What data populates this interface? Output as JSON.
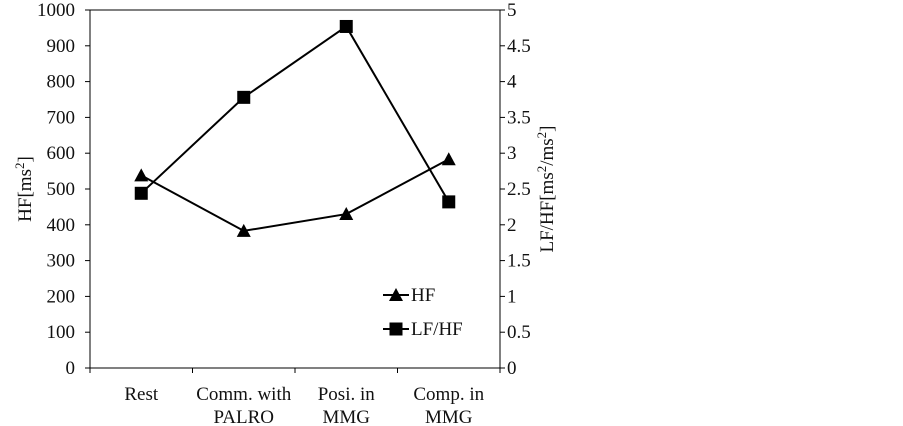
{
  "chart_data": {
    "type": "line",
    "categories": [
      [
        "Rest"
      ],
      [
        "Comm. with",
        "PALRO"
      ],
      [
        "Posi. in",
        "MMG"
      ],
      [
        "Comp. in",
        "MMG"
      ]
    ],
    "y_left": {
      "label_main": "HF[ms",
      "label_sup": "2",
      "label_end": "]",
      "lim": [
        0,
        1000
      ],
      "ticks": [
        "0",
        "100",
        "200",
        "300",
        "400",
        "500",
        "600",
        "700",
        "800",
        "900",
        "1000"
      ]
    },
    "y_right": {
      "label_main": "LF/HF[ms",
      "label_sup1": "2",
      "label_mid": "/ms",
      "label_sup2": "2",
      "label_end": "]",
      "lim": [
        0,
        5
      ],
      "ticks": [
        "0",
        "0.5",
        "1",
        "1.5",
        "2",
        "2.5",
        "3",
        "3.5",
        "4",
        "4.5",
        "5"
      ]
    },
    "series": [
      {
        "name": "HF",
        "axis": "left",
        "marker": "triangle",
        "values": [
          538,
          383,
          430,
          583
        ]
      },
      {
        "name": "LF/HF",
        "axis": "right",
        "marker": "square",
        "values": [
          2.44,
          3.78,
          4.77,
          2.32
        ]
      }
    ],
    "legend_position": "bottom-right inside plot",
    "grid": false,
    "colors": {
      "line": "#000000",
      "axis": "#000000",
      "text": "#111111"
    }
  }
}
